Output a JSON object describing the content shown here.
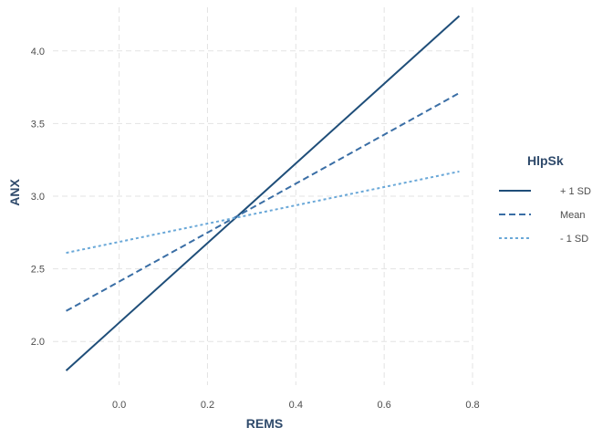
{
  "chart_data": {
    "type": "line",
    "xlabel": "REMS",
    "ylabel": "ANX",
    "xlim": [
      -0.15,
      0.8
    ],
    "ylim": [
      1.7,
      4.3
    ],
    "x_ticks": [
      0.0,
      0.2,
      0.4,
      0.6,
      0.8
    ],
    "x_tick_labels": [
      "0.0",
      "0.2",
      "0.4",
      "0.6",
      "0.8"
    ],
    "y_ticks": [
      2.0,
      2.5,
      3.0,
      3.5,
      4.0
    ],
    "y_tick_labels": [
      "2.0",
      "2.5",
      "3.0",
      "3.5",
      "4.0"
    ],
    "grid": true,
    "legend": {
      "title": "HlpSk",
      "placement": "right"
    },
    "series": [
      {
        "name": "+ 1 SD",
        "x": [
          -0.12,
          0.77
        ],
        "y": [
          1.8,
          4.24
        ],
        "color": "#1f4e79",
        "dash": "solid"
      },
      {
        "name": "Mean",
        "x": [
          -0.12,
          0.77
        ],
        "y": [
          2.21,
          3.71
        ],
        "color": "#3a6ea5",
        "dash": "dashed"
      },
      {
        "name": "- 1 SD",
        "x": [
          -0.12,
          0.77
        ],
        "y": [
          2.61,
          3.17
        ],
        "color": "#6aa8d8",
        "dash": "dotted"
      }
    ]
  }
}
